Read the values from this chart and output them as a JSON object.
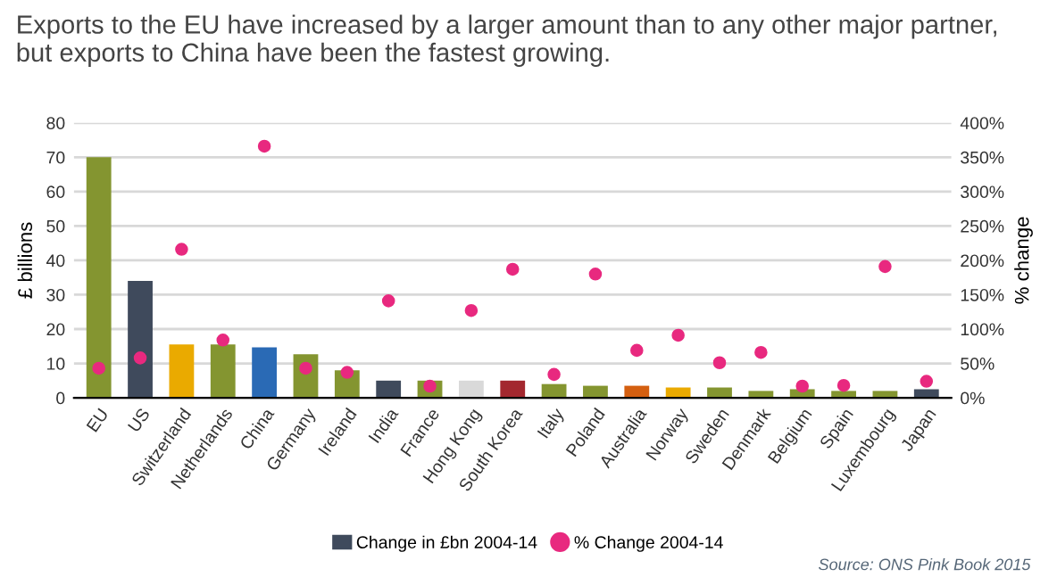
{
  "chart_data": {
    "type": "bar",
    "title": "Exports to the EU have increased by a larger amount than to any other major partner,\nbut exports to China have been the fastest growing.",
    "categories": [
      "EU",
      "US",
      "Switzerland",
      "Netherlands",
      "China",
      "Germany",
      "Ireland",
      "India",
      "France",
      "Hong Kong",
      "South Korea",
      "Italy",
      "Poland",
      "Australia",
      "Norway",
      "Sweden",
      "Denmark",
      "Belgium",
      "Spain",
      "Luxembourg",
      "Japan"
    ],
    "series": [
      {
        "name": "Change in £bn 2004-14",
        "color": "#3f4a5c",
        "colors": [
          "#849530",
          "#3f4a5c",
          "#eaaa00",
          "#849530",
          "#2a6ab5",
          "#849530",
          "#849530",
          "#3f4a5c",
          "#849530",
          "#d9d9d9",
          "#a3282f",
          "#849530",
          "#849530",
          "#d45f10",
          "#eaaa00",
          "#849530",
          "#849530",
          "#849530",
          "#849530",
          "#849530",
          "#3f4a5c"
        ],
        "values": [
          70,
          34,
          15.5,
          15.5,
          14.7,
          12.7,
          8,
          5,
          5,
          5,
          5,
          4,
          3.5,
          3.5,
          3,
          3,
          2,
          2.5,
          2,
          2,
          2.5
        ]
      },
      {
        "name": "% Change 2004-14",
        "type": "scatter",
        "axis": "y2",
        "color": "#e8297f",
        "values": [
          43,
          58,
          216,
          84,
          366,
          43,
          37,
          141,
          17,
          127,
          187,
          34,
          180,
          69,
          91,
          51,
          66,
          17,
          18,
          191,
          24
        ]
      }
    ],
    "ylabel": "£ billions",
    "y2label": "% change",
    "ylim": [
      0,
      80
    ],
    "yticks": [
      0,
      10,
      20,
      30,
      40,
      50,
      60,
      70,
      80
    ],
    "y2lim": [
      0,
      400
    ],
    "y2ticks": [
      {
        "value": 0,
        "label": "0%"
      },
      {
        "value": 50,
        "label": "50%"
      },
      {
        "value": 100,
        "label": "100%"
      },
      {
        "value": 150,
        "label": "150%"
      },
      {
        "value": 200,
        "label": "200%"
      },
      {
        "value": 250,
        "label": "250%"
      },
      {
        "value": 300,
        "label": "300%"
      },
      {
        "value": 350,
        "label": "350%"
      },
      {
        "value": 400,
        "label": "400%"
      }
    ],
    "grid": "y",
    "legend": "bottom",
    "marker": "circle",
    "annotations": [
      "Source: ONS Pink Book 2015"
    ]
  }
}
